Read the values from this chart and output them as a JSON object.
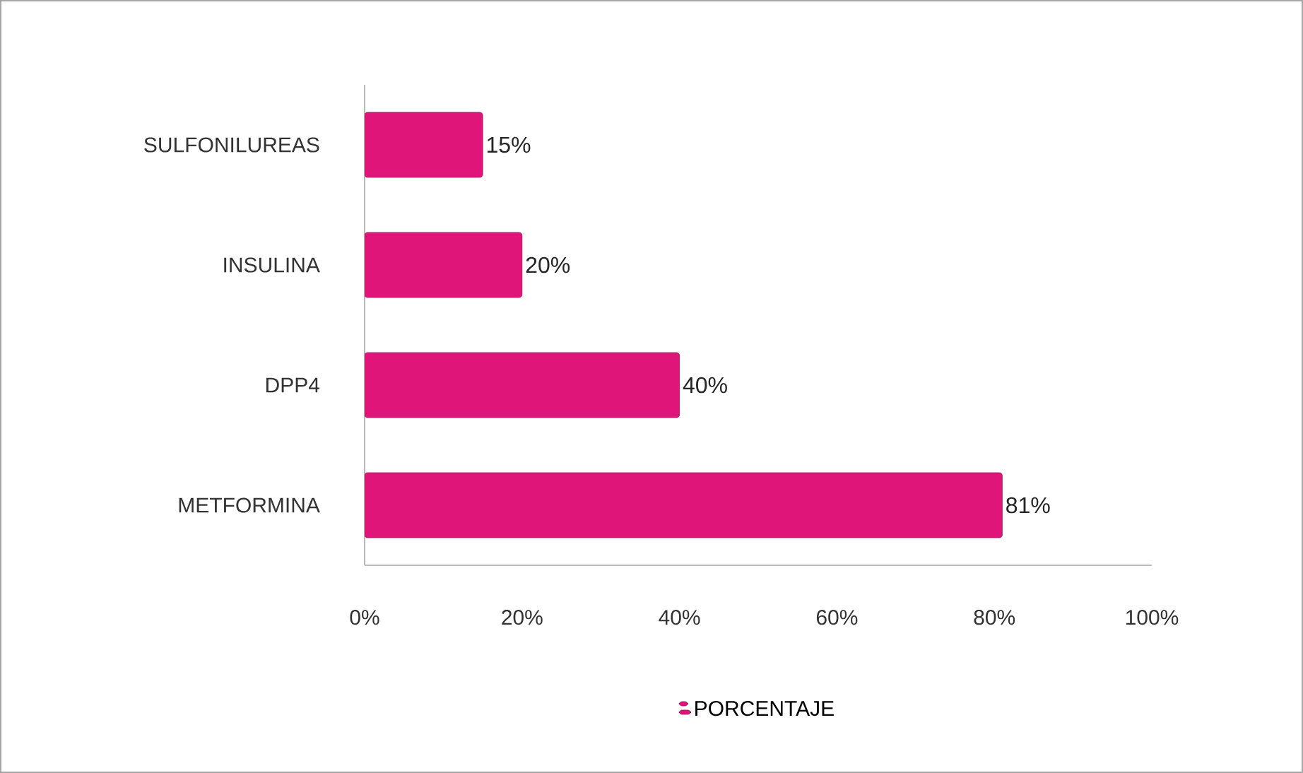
{
  "chart_data": {
    "type": "bar",
    "orientation": "horizontal",
    "categories": [
      "SULFONILUREAS",
      "INSULINA",
      "DPP4",
      "METFORMINA"
    ],
    "series": [
      {
        "name": "PORCENTAJE",
        "color": "#e0157a",
        "values": [
          15,
          20,
          40,
          81
        ],
        "value_labels": [
          "15%",
          "20%",
          "40%",
          "81%"
        ]
      }
    ],
    "xlim": [
      0,
      100
    ],
    "xticks": [
      {
        "value": 0,
        "label": "0%"
      },
      {
        "value": 20,
        "label": "20%"
      },
      {
        "value": 40,
        "label": "40%"
      },
      {
        "value": 60,
        "label": "60%"
      },
      {
        "value": 80,
        "label": "80%"
      },
      {
        "value": 100,
        "label": "100%"
      }
    ],
    "grid": false,
    "legend": "bottom"
  }
}
